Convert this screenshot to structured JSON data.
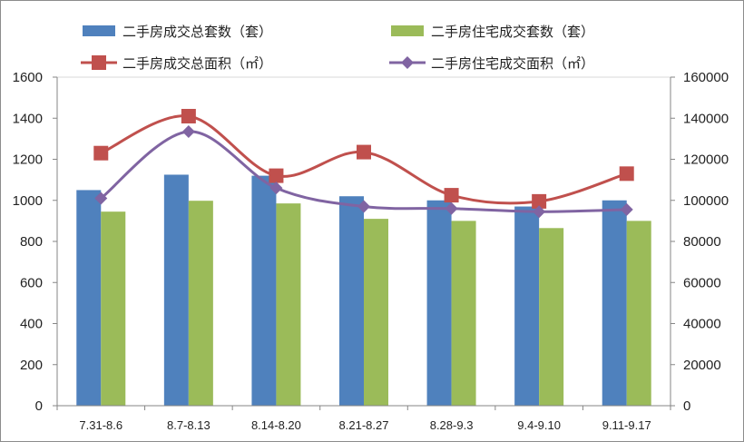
{
  "chart_data": {
    "type": "bar",
    "categories": [
      "7.31-8.6",
      "8.7-8.13",
      "8.14-8.20",
      "8.21-8.27",
      "8.28-9.3",
      "9.4-9.10",
      "9.11-9.17"
    ],
    "series": [
      {
        "name": "二手房成交总套数（套）",
        "type": "bar",
        "axis": "left",
        "color": "#4f81bd",
        "values": [
          1050,
          1125,
          1120,
          1020,
          1000,
          970,
          1000
        ]
      },
      {
        "name": "二手房住宅成交套数（套）",
        "type": "bar",
        "axis": "left",
        "color": "#9bbb59",
        "values": [
          945,
          998,
          985,
          910,
          900,
          865,
          900
        ]
      },
      {
        "name": "二手房成交总面积（㎡）",
        "type": "line",
        "axis": "right",
        "color": "#c0504d",
        "marker": "square",
        "values": [
          123000,
          141000,
          112000,
          123500,
          102500,
          99500,
          113000
        ]
      },
      {
        "name": "二手房住宅成交面积（㎡）",
        "type": "line",
        "axis": "right",
        "color": "#8064a2",
        "marker": "diamond",
        "values": [
          101000,
          133500,
          106000,
          97000,
          96000,
          94500,
          95500
        ]
      }
    ],
    "y_left": {
      "min": 0,
      "max": 1600,
      "ticks": [
        "0",
        "200",
        "400",
        "600",
        "800",
        "1000",
        "1200",
        "1400",
        "1600"
      ]
    },
    "y_right": {
      "min": 0,
      "max": 160000,
      "ticks": [
        "0",
        "20000",
        "40000",
        "60000",
        "80000",
        "100000",
        "120000",
        "140000",
        "160000"
      ]
    },
    "grid": false,
    "legend_position": "top"
  }
}
